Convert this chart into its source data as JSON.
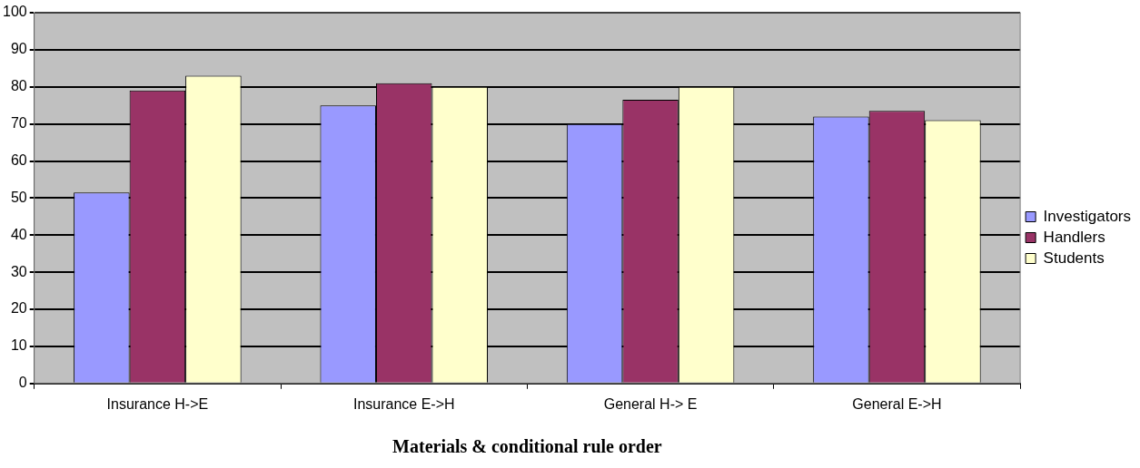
{
  "chart_data": {
    "type": "bar",
    "xlabel": "Materials & conditional rule order",
    "categories": [
      "Insurance H->E",
      "Insurance E->H",
      "General H-> E",
      "General E->H"
    ],
    "series": [
      {
        "name": "Investigators",
        "color": "#9999ff",
        "values": [
          51.5,
          75,
          70,
          72
        ]
      },
      {
        "name": "Handlers",
        "color": "#993366",
        "values": [
          79,
          81,
          76.5,
          73.5
        ]
      },
      {
        "name": "Students",
        "color": "#ffffcc",
        "values": [
          83,
          80,
          80,
          71
        ]
      }
    ],
    "ylim": [
      0,
      100
    ],
    "yticks": [
      0,
      10,
      20,
      30,
      40,
      50,
      60,
      70,
      80,
      90,
      100
    ],
    "grid": "y",
    "legend": "right"
  }
}
